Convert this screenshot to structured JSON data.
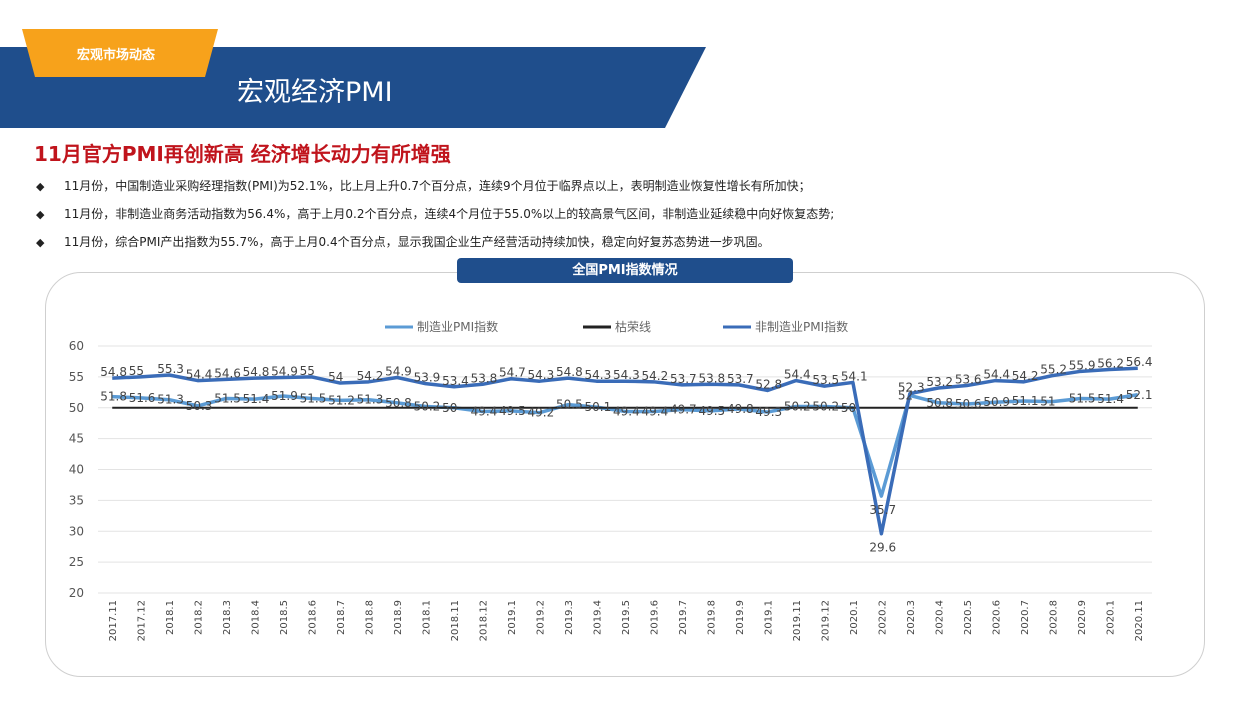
{
  "header": {
    "tag": "宏观市场动态",
    "title": "宏观经济PMI",
    "colors": {
      "band": "#1f4e8c",
      "tag": "#f7a21b",
      "headline": "#c0141c"
    }
  },
  "headline": "11月官方PMI再创新高 经济增长动力有所增强",
  "bullets": [
    "11月份，中国制造业采购经理指数(PMI)为52.1%，比上月上升0.7个百分点，连续9个月位于临界点以上，表明制造业恢复性增长有所加快；",
    "11月份，非制造业商务活动指数为56.4%，高于上月0.2个百分点，连续4个月位于55.0%以上的较高景气区间，非制造业延续稳中向好恢复态势;",
    "11月份，综合PMI产出指数为55.7%，高于上月0.4个百分点，显示我国企业生产经营活动持续加快，稳定向好复苏态势进一步巩固。"
  ],
  "bullet_icon": "diamond-bullet-icon",
  "chart_data": {
    "type": "line",
    "title": "全国PMI指数情况",
    "categories": [
      "2017.11",
      "2017.12",
      "2018.1",
      "2018.2",
      "2018.3",
      "2018.4",
      "2018.5",
      "2018.6",
      "2018.7",
      "2018.8",
      "2018.9",
      "2018.1",
      "2018.11",
      "2018.12",
      "2019.1",
      "2019.2",
      "2019.3",
      "2019.4",
      "2019.5",
      "2019.6",
      "2019.7",
      "2019.8",
      "2019.9",
      "2019.1",
      "2019.11",
      "2019.12",
      "2020.1",
      "2020.2",
      "2020.3",
      "2020.4",
      "2020.5",
      "2020.6",
      "2020.7",
      "2020.8",
      "2020.9",
      "2020.1",
      "2020.11"
    ],
    "ylim": [
      20,
      60
    ],
    "yticks": [
      20,
      25,
      30,
      35,
      40,
      45,
      50,
      55,
      60
    ],
    "grid": true,
    "legend_position": "top",
    "series": [
      {
        "name": "制造业PMI指数",
        "color": "#5b9bd5",
        "values": [
          51.8,
          51.6,
          51.3,
          50.3,
          51.5,
          51.4,
          51.9,
          51.5,
          51.2,
          51.3,
          50.8,
          50.2,
          50.0,
          49.4,
          49.5,
          49.2,
          50.5,
          50.1,
          49.4,
          49.4,
          49.7,
          49.5,
          49.8,
          49.3,
          50.2,
          50.2,
          50.0,
          35.7,
          52.0,
          50.8,
          50.6,
          50.9,
          51.1,
          51.0,
          51.5,
          51.4,
          52.1
        ],
        "labels": [
          "51.8",
          "51.6",
          "51.3",
          "50.3",
          "51.5",
          "51.4",
          "51.9",
          "51.5",
          "51.2",
          "51.3",
          "50.8",
          "50.2",
          "50",
          "49.4",
          "49.5",
          "49.2",
          "50.5",
          "50.1",
          "49.4",
          "49.4",
          "49.7",
          "49.5",
          "49.8",
          "49.3",
          "50.2",
          "50.2",
          "50",
          "35.7",
          "52",
          "50.8",
          "50.6",
          "50.9",
          "51.1",
          "51",
          "51.5",
          "51.4",
          "52.1"
        ]
      },
      {
        "name": "枯荣线",
        "color": "#222222",
        "values": [
          50,
          50,
          50,
          50,
          50,
          50,
          50,
          50,
          50,
          50,
          50,
          50,
          50,
          50,
          50,
          50,
          50,
          50,
          50,
          50,
          50,
          50,
          50,
          50,
          50,
          50,
          50,
          50,
          50,
          50,
          50,
          50,
          50,
          50,
          50,
          50,
          50
        ]
      },
      {
        "name": "非制造业PMI指数",
        "color": "#3a6cb8",
        "values": [
          54.8,
          55.0,
          55.3,
          54.4,
          54.6,
          54.8,
          54.9,
          55.0,
          54.0,
          54.2,
          54.9,
          53.9,
          53.4,
          53.8,
          54.7,
          54.3,
          54.8,
          54.3,
          54.3,
          54.2,
          53.7,
          53.8,
          53.7,
          52.8,
          54.4,
          53.5,
          54.1,
          29.6,
          52.3,
          53.2,
          53.6,
          54.4,
          54.2,
          55.2,
          55.9,
          56.2,
          56.4
        ],
        "labels": [
          "54.8",
          "55",
          "55.3",
          "54.4",
          "54.6",
          "54.8",
          "54.9",
          "55",
          "54",
          "54.2",
          "54.9",
          "53.9",
          "53.4",
          "53.8",
          "54.7",
          "54.3",
          "54.8",
          "54.3",
          "54.3",
          "54.2",
          "53.7",
          "53.8",
          "53.7",
          "52.8",
          "54.4",
          "53.5",
          "54.1",
          "29.6",
          "52.3",
          "53.2",
          "53.6",
          "54.4",
          "54.2",
          "55.2",
          "55.9",
          "56.2",
          "56.4"
        ]
      }
    ]
  }
}
